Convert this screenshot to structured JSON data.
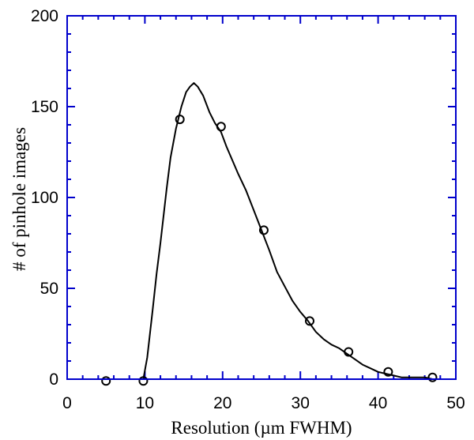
{
  "chart_data": {
    "type": "scatter",
    "title": "",
    "xlabel": "Resolution (µm FWHM)",
    "ylabel": "# of pinhole images",
    "xlim": [
      0,
      50
    ],
    "ylim": [
      0,
      200
    ],
    "xticks": [
      0,
      10,
      20,
      30,
      40,
      50
    ],
    "yticks": [
      0,
      50,
      100,
      150,
      200
    ],
    "grid": false,
    "colors": {
      "frame": "#0000cc",
      "data": "#000000"
    },
    "series": [
      {
        "marker": "open-circle",
        "x": [
          5,
          9.8,
          14.5,
          19.8,
          25.3,
          31.2,
          36.2,
          41.3,
          47
        ],
        "y": [
          -1,
          -1,
          143,
          139,
          82,
          32,
          15,
          4,
          1
        ]
      },
      {
        "line": true,
        "x": [
          9.8,
          10.3,
          11.0,
          11.5,
          12.0,
          12.8,
          13.3,
          14.0,
          14.7,
          15.3,
          15.8,
          16.3,
          16.8,
          17.5,
          18.3,
          19.0,
          19.8,
          20.5,
          21.3,
          22.0,
          23.0,
          24.0,
          25.0,
          26.0,
          27.0,
          28.0,
          29.0,
          30.0,
          31.0,
          32.0,
          33.0,
          34.0,
          35.0,
          36.0,
          37.0,
          38.0,
          39.0,
          40.0,
          41.0,
          42.0,
          43.0,
          44.0,
          45.0,
          46.0,
          47.0,
          48.0,
          49.0,
          50.0
        ],
        "y": [
          0,
          12,
          38,
          58,
          75,
          105,
          122,
          138,
          150,
          158,
          161,
          163,
          161,
          156,
          147,
          141,
          136,
          128,
          120,
          113,
          104,
          93,
          82,
          71,
          59,
          51,
          43,
          37,
          32,
          26,
          22,
          19,
          17,
          14,
          11,
          8,
          6,
          4,
          3,
          2,
          1,
          1,
          1,
          1,
          0,
          0,
          0,
          0
        ]
      }
    ]
  }
}
